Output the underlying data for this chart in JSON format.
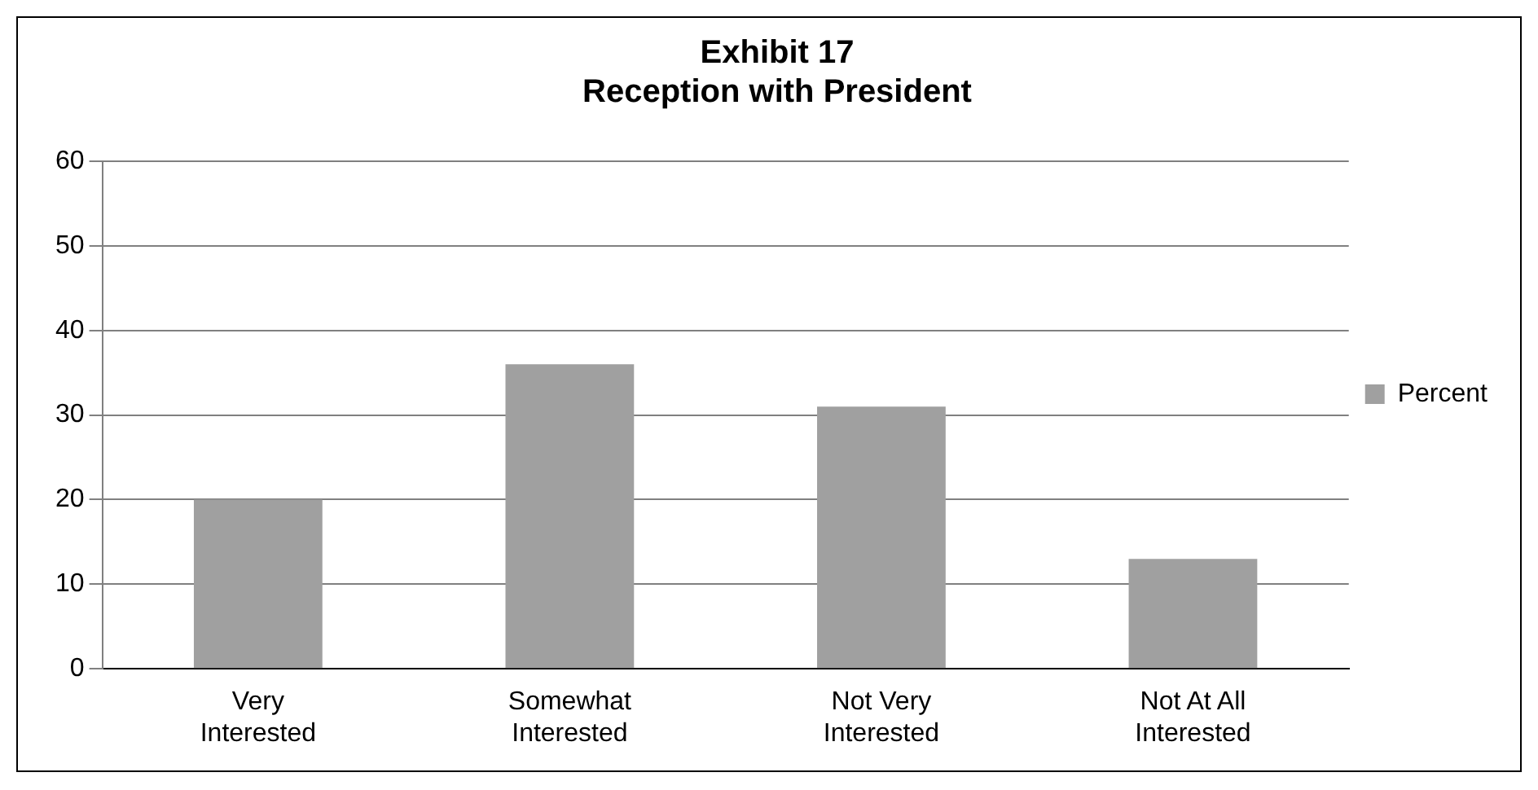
{
  "chart_data": {
    "type": "bar",
    "title": "Exhibit 17\nReception with President",
    "categories": [
      "Very Interested",
      "Somewhat Interested",
      "Not Very Interested",
      "Not At All Interested"
    ],
    "series": [
      {
        "name": "Percent",
        "color": "#a0a0a0",
        "values": [
          20,
          36,
          31,
          13
        ]
      }
    ],
    "ylim": [
      0,
      60
    ],
    "yticks": [
      0,
      10,
      20,
      30,
      40,
      50,
      60
    ],
    "grid": "y",
    "legend": "right"
  }
}
